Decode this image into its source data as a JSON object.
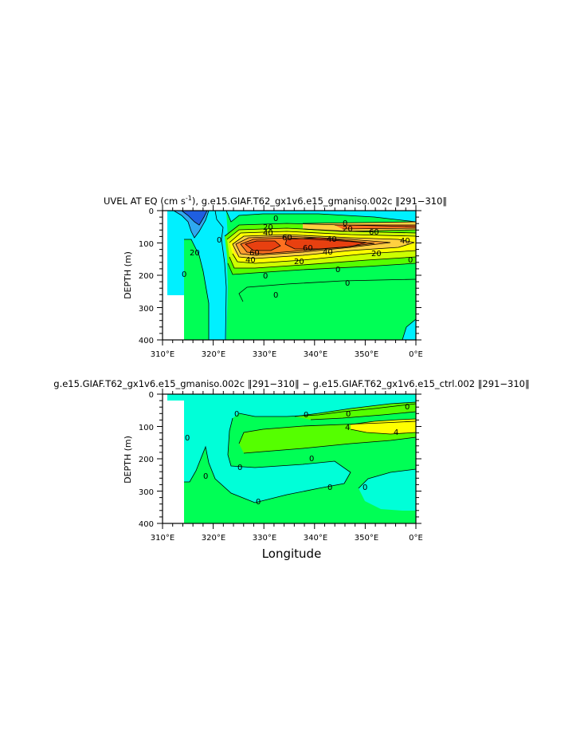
{
  "chart_data": [
    {
      "type": "heatmap",
      "title_parts": [
        "UVEL AT EQ (cm s",
        "-1",
        "), g.e15.GIAF.T62_gx1v6.e15_gmaniso.002c ‖291−310‖"
      ],
      "ylabel": "DEPTH (m)",
      "xlabel": "",
      "x_ticks": [
        "310°E",
        "320°E",
        "330°E",
        "340°E",
        "350°E",
        "0°E"
      ],
      "y_ticks": [
        "0",
        "100",
        "200",
        "300",
        "400"
      ],
      "xlim": [
        310,
        360
      ],
      "ylim": [
        400,
        0
      ],
      "colors": {
        "neg_strong": "#1f5fe0",
        "neg": "#2fa8f0",
        "neg_weak": "#00f0ff",
        "pos_weak": "#00ff55",
        "pos_light": "#55ff00",
        "pos_mid": "#ccff00",
        "pos_yellow": "#ffff00",
        "pos_gold": "#ffd040",
        "pos_orange": "#ffa030",
        "pos_dark": "#ff7020",
        "pos_max": "#e84010"
      },
      "contour_labels": [
        "0",
        "20",
        "0",
        "20",
        "40",
        "60",
        "40",
        "60",
        "40",
        "20",
        "0",
        "20",
        "40",
        "60",
        "0",
        "0",
        "0",
        "20",
        "40",
        "60",
        "0",
        "0",
        "0"
      ]
    },
    {
      "type": "heatmap",
      "title": "g.e15.GIAF.T62_gx1v6.e15_gmaniso.002c ‖291−310‖ − g.e15.GIAF.T62_gx1v6.e15_ctrl.002 ‖291−310‖",
      "ylabel": "DEPTH (m)",
      "xlabel": "Longitude",
      "x_ticks": [
        "310°E",
        "320°E",
        "330°E",
        "340°E",
        "350°E",
        "0°E"
      ],
      "y_ticks": [
        "0",
        "100",
        "200",
        "300",
        "400"
      ],
      "xlim": [
        310,
        360
      ],
      "ylim": [
        400,
        0
      ],
      "colors": {
        "neg": "#00ffd8",
        "pos_weak": "#00ff55",
        "pos": "#55ff00",
        "pos_strong": "#ffff00"
      },
      "contour_labels": [
        "0",
        "0",
        "0",
        "0",
        "0",
        "4",
        "4",
        "0",
        "0",
        "0",
        "0",
        "0",
        "0"
      ]
    }
  ]
}
